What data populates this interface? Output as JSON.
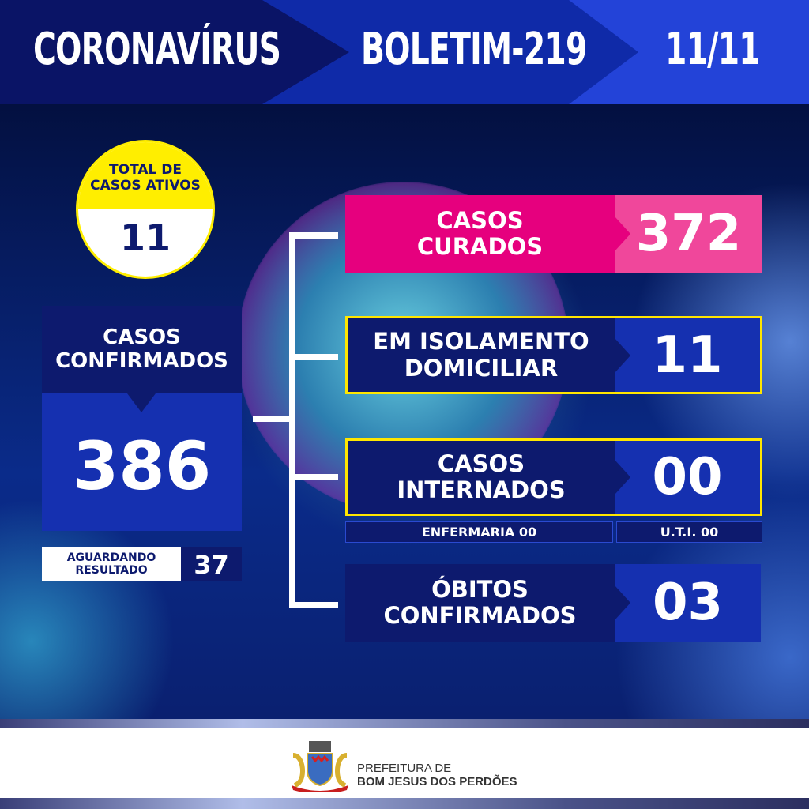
{
  "header": {
    "title": "CORONAVÍRUS",
    "bulletin": "BOLETIM-219",
    "date": "11/11"
  },
  "active_cases": {
    "label_line1": "TOTAL DE",
    "label_line2": "CASOS ATIVOS",
    "value": "11"
  },
  "confirmed": {
    "label_line1": "CASOS",
    "label_line2": "CONFIRMADOS",
    "value": "386"
  },
  "awaiting": {
    "label_line1": "AGUARDANDO",
    "label_line2": "RESULTADO",
    "value": "37"
  },
  "cured": {
    "label_line1": "CASOS",
    "label_line2": "CURADOS",
    "value": "372"
  },
  "home_isolation": {
    "label_line1": "EM ISOLAMENTO",
    "label_line2": "DOMICILIAR",
    "value": "11"
  },
  "hospitalized": {
    "label_line1": "CASOS",
    "label_line2": "INTERNADOS",
    "value": "00",
    "ward": "ENFERMARIA 00",
    "icu": "U.T.I. 00"
  },
  "deaths": {
    "label_line1": "ÓBITOS",
    "label_line2": "CONFIRMADOS",
    "value": "03"
  },
  "footer": {
    "line1": "PREFEITURA DE",
    "line2": "BOM JESUS DOS PERDÕES",
    "logo": "coat-of-arms"
  },
  "colors": {
    "navy": "#0d1a6e",
    "blue": "#1530b0",
    "pink": "#e6007e",
    "pink_light": "#f0479b",
    "yellow": "#ffee00"
  }
}
